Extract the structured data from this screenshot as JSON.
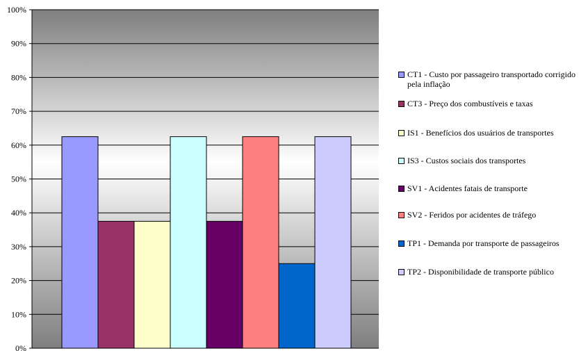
{
  "chart_data": {
    "type": "bar",
    "ylim": [
      0,
      100
    ],
    "yticks": [
      "0%",
      "10%",
      "20%",
      "30%",
      "40%",
      "50%",
      "60%",
      "70%",
      "80%",
      "90%",
      "100%"
    ],
    "grid": true,
    "legend_position": "right",
    "series": [
      {
        "name": "CT1 - Custo por passageiro transportado corrigido pela inflação",
        "value": 62.5,
        "color": "#9999ff"
      },
      {
        "name": "CT3 - Preço dos combustíveis e taxas",
        "value": 37.5,
        "color": "#993366"
      },
      {
        "name": "IS1 - Benefícios dos usuários de transportes",
        "value": 37.5,
        "color": "#ffffcc"
      },
      {
        "name": "IS3 - Custos sociais dos transportes",
        "value": 62.5,
        "color": "#ccffff"
      },
      {
        "name": "SV1 - Acidentes fatais de transporte",
        "value": 37.5,
        "color": "#660066"
      },
      {
        "name": "SV2 - Feridos por acidentes de tráfego",
        "value": 62.5,
        "color": "#ff8080"
      },
      {
        "name": "TP1 - Demanda por transporte de passageiros",
        "value": 25,
        "color": "#0066cc"
      },
      {
        "name": "TP2 - Disponibilidade de transporte público",
        "value": 62.5,
        "color": "#ccccff"
      }
    ]
  }
}
